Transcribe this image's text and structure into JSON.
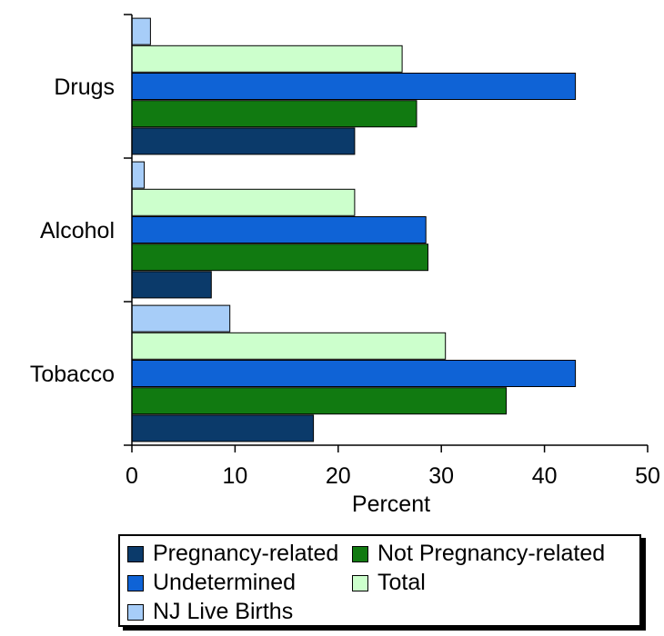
{
  "chart_data": {
    "type": "bar",
    "orientation": "horizontal",
    "categories": [
      "Tobacco",
      "Alcohol",
      "Drugs"
    ],
    "xlabel": "Percent",
    "xlim": [
      0,
      50
    ],
    "xticks": [
      0,
      10,
      20,
      30,
      40,
      50
    ],
    "grid": false,
    "legend_placement": "bottom",
    "series": [
      {
        "name": "Pregnancy-related",
        "color": "#0b3a6a",
        "values": [
          17.6,
          7.7,
          21.6
        ]
      },
      {
        "name": "Not Pregnancy-related",
        "color": "#117a11",
        "values": [
          36.3,
          28.7,
          27.6
        ]
      },
      {
        "name": "Undetermined",
        "color": "#0f63d6",
        "values": [
          43.0,
          28.5,
          43.0
        ]
      },
      {
        "name": "Total",
        "color": "#ccffcc",
        "values": [
          30.4,
          21.6,
          26.2
        ]
      },
      {
        "name": "NJ Live Births",
        "color": "#a7cdf8",
        "values": [
          9.5,
          1.2,
          1.8
        ]
      }
    ]
  }
}
